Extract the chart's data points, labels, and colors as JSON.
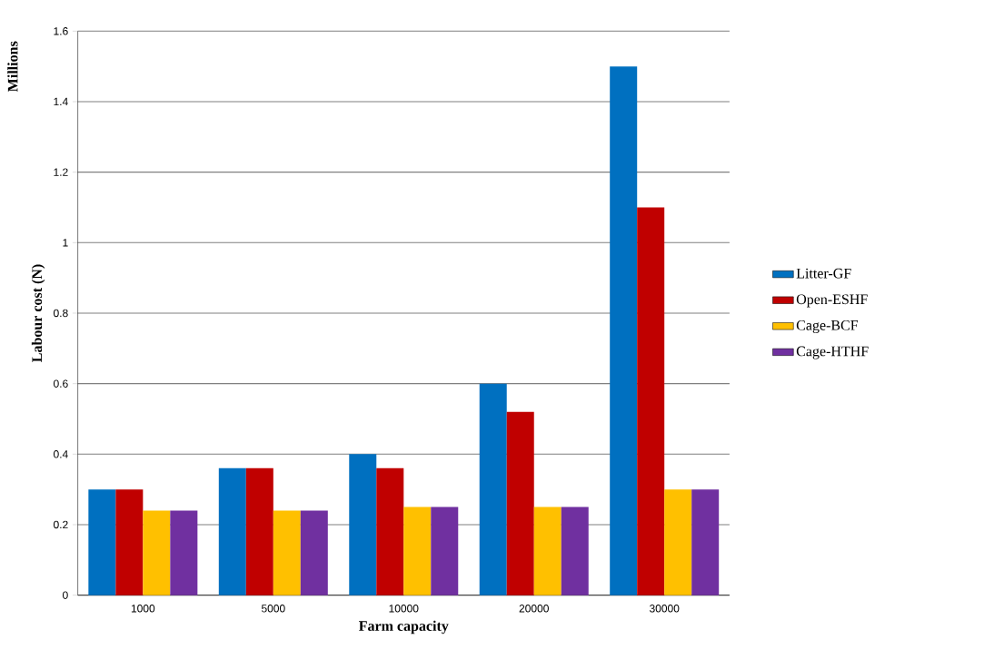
{
  "chart_data": {
    "type": "bar",
    "xlabel": "Farm capacity",
    "ylabel": "Labour cost (N)",
    "annotations": [
      "Millions"
    ],
    "categories": [
      "1000",
      "5000",
      "10000",
      "20000",
      "30000"
    ],
    "series": [
      {
        "name": "Litter-GF",
        "color": "#0070c0",
        "values": [
          0.3,
          0.36,
          0.4,
          0.6,
          1.5
        ]
      },
      {
        "name": "Open-ESHF",
        "color": "#c00000",
        "values": [
          0.3,
          0.36,
          0.36,
          0.52,
          1.1
        ]
      },
      {
        "name": "Cage-BCF",
        "color": "#ffc000",
        "values": [
          0.24,
          0.24,
          0.25,
          0.25,
          0.3
        ]
      },
      {
        "name": "Cage-HTHF",
        "color": "#7030a0",
        "values": [
          0.24,
          0.24,
          0.25,
          0.25,
          0.3
        ]
      }
    ],
    "ylim": [
      0,
      1.6
    ],
    "yticks": [
      0,
      0.2,
      0.4,
      0.6,
      0.8,
      1,
      1.2,
      1.4,
      1.6
    ],
    "grid": "y",
    "legend": "right"
  }
}
